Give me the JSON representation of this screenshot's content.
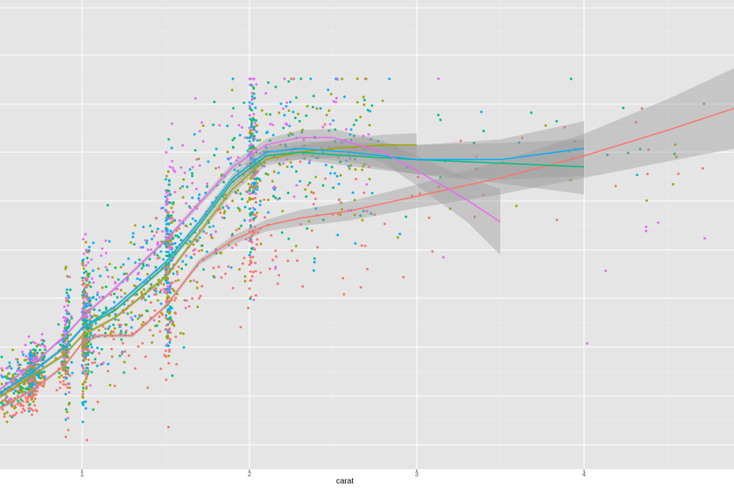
{
  "chart_data": {
    "type": "scatter",
    "title": "",
    "xlabel": "carat",
    "ylabel": "",
    "xlim": [
      0.0,
      4.9
    ],
    "ylim": [
      0,
      1
    ],
    "x_ticks": [
      "1",
      "2",
      "3",
      "4"
    ],
    "grid": true,
    "legend": "none",
    "background": "#e5e5e5",
    "scatter_colors": [
      "#f8766d",
      "#a3a500",
      "#00bf7d",
      "#00b0f6",
      "#e76bf3"
    ],
    "series": [
      {
        "color": "#f8766d",
        "smooth": [
          [
            0.3,
            0.06
          ],
          [
            0.5,
            0.1
          ],
          [
            0.7,
            0.15
          ],
          [
            0.9,
            0.22
          ],
          [
            1.0,
            0.28
          ],
          [
            1.1,
            0.3
          ],
          [
            1.3,
            0.3
          ],
          [
            1.5,
            0.38
          ],
          [
            1.7,
            0.5
          ],
          [
            1.9,
            0.56
          ],
          [
            2.1,
            0.6
          ],
          [
            2.3,
            0.62
          ],
          [
            2.6,
            0.64
          ],
          [
            3.0,
            0.68
          ],
          [
            3.5,
            0.73
          ],
          [
            4.0,
            0.79
          ],
          [
            4.5,
            0.86
          ],
          [
            4.9,
            0.92
          ]
        ],
        "band": [
          0.005,
          0.005,
          0.005,
          0.005,
          0.005,
          0.005,
          0.005,
          0.005,
          0.008,
          0.012,
          0.016,
          0.022,
          0.026,
          0.032,
          0.045,
          0.06,
          0.085,
          0.11
        ]
      },
      {
        "color": "#a3a500",
        "smooth": [
          [
            0.3,
            0.08
          ],
          [
            0.5,
            0.13
          ],
          [
            0.7,
            0.19
          ],
          [
            0.9,
            0.25
          ],
          [
            1.0,
            0.3
          ],
          [
            1.2,
            0.35
          ],
          [
            1.5,
            0.46
          ],
          [
            1.7,
            0.58
          ],
          [
            1.9,
            0.7
          ],
          [
            2.1,
            0.78
          ],
          [
            2.3,
            0.8
          ],
          [
            2.5,
            0.81
          ],
          [
            2.8,
            0.82
          ],
          [
            3.0,
            0.82
          ]
        ],
        "band": [
          0.005,
          0.005,
          0.005,
          0.005,
          0.005,
          0.005,
          0.006,
          0.008,
          0.012,
          0.016,
          0.02,
          0.024,
          0.028,
          0.032
        ]
      },
      {
        "color": "#00bf7d",
        "smooth": [
          [
            0.3,
            0.09
          ],
          [
            0.5,
            0.14
          ],
          [
            0.7,
            0.2
          ],
          [
            0.9,
            0.27
          ],
          [
            1.0,
            0.32
          ],
          [
            1.2,
            0.37
          ],
          [
            1.5,
            0.49
          ],
          [
            1.7,
            0.6
          ],
          [
            1.9,
            0.72
          ],
          [
            2.1,
            0.79
          ],
          [
            2.3,
            0.8
          ],
          [
            2.6,
            0.79
          ],
          [
            3.0,
            0.78
          ],
          [
            3.5,
            0.77
          ],
          [
            4.0,
            0.76
          ]
        ],
        "band": [
          0.005,
          0.005,
          0.005,
          0.005,
          0.005,
          0.005,
          0.006,
          0.008,
          0.012,
          0.016,
          0.02,
          0.028,
          0.04,
          0.055,
          0.075
        ]
      },
      {
        "color": "#00b0f6",
        "smooth": [
          [
            0.3,
            0.09
          ],
          [
            0.5,
            0.14
          ],
          [
            0.7,
            0.2
          ],
          [
            0.9,
            0.27
          ],
          [
            1.0,
            0.32
          ],
          [
            1.2,
            0.38
          ],
          [
            1.5,
            0.5
          ],
          [
            1.7,
            0.61
          ],
          [
            1.9,
            0.73
          ],
          [
            2.1,
            0.8
          ],
          [
            2.3,
            0.81
          ],
          [
            2.6,
            0.8
          ],
          [
            3.0,
            0.78
          ],
          [
            3.5,
            0.78
          ],
          [
            4.0,
            0.81
          ]
        ],
        "band": [
          0.005,
          0.005,
          0.005,
          0.005,
          0.005,
          0.005,
          0.006,
          0.008,
          0.012,
          0.016,
          0.02,
          0.028,
          0.04,
          0.055,
          0.075
        ]
      },
      {
        "color": "#e76bf3",
        "smooth": [
          [
            0.3,
            0.1
          ],
          [
            0.5,
            0.15
          ],
          [
            0.7,
            0.22
          ],
          [
            0.9,
            0.3
          ],
          [
            1.0,
            0.35
          ],
          [
            1.2,
            0.43
          ],
          [
            1.5,
            0.56
          ],
          [
            1.7,
            0.66
          ],
          [
            1.9,
            0.76
          ],
          [
            2.1,
            0.82
          ],
          [
            2.3,
            0.84
          ],
          [
            2.5,
            0.84
          ],
          [
            2.8,
            0.8
          ],
          [
            3.0,
            0.75
          ],
          [
            3.3,
            0.67
          ],
          [
            3.5,
            0.61
          ]
        ],
        "band": [
          0.005,
          0.005,
          0.005,
          0.005,
          0.005,
          0.005,
          0.006,
          0.008,
          0.012,
          0.016,
          0.02,
          0.024,
          0.03,
          0.04,
          0.06,
          0.09
        ]
      }
    ]
  }
}
